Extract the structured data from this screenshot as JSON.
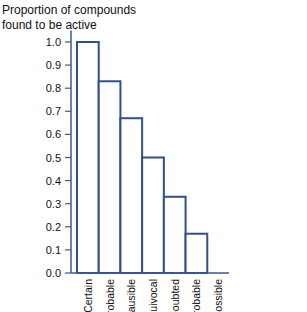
{
  "chart_data": {
    "type": "bar",
    "title": "Proportion of compounds found to be active",
    "categories": [
      "Certain",
      "Probable",
      "Plausible",
      "Equivocal",
      "Doubted",
      "Improbable",
      "Impossible"
    ],
    "values": [
      1.0,
      0.83,
      0.67,
      0.5,
      0.33,
      0.17,
      0.0
    ],
    "color": "#2f4f8f",
    "ylim": [
      0,
      1.05
    ],
    "yticks": [
      {
        "value": 0,
        "label": "0.0"
      },
      0.1,
      0.2,
      0.3,
      0.4,
      0.5,
      0.6,
      0.7,
      0.8,
      0.9,
      {
        "value": 1,
        "label": "1.0"
      }
    ],
    "grid": false
  }
}
